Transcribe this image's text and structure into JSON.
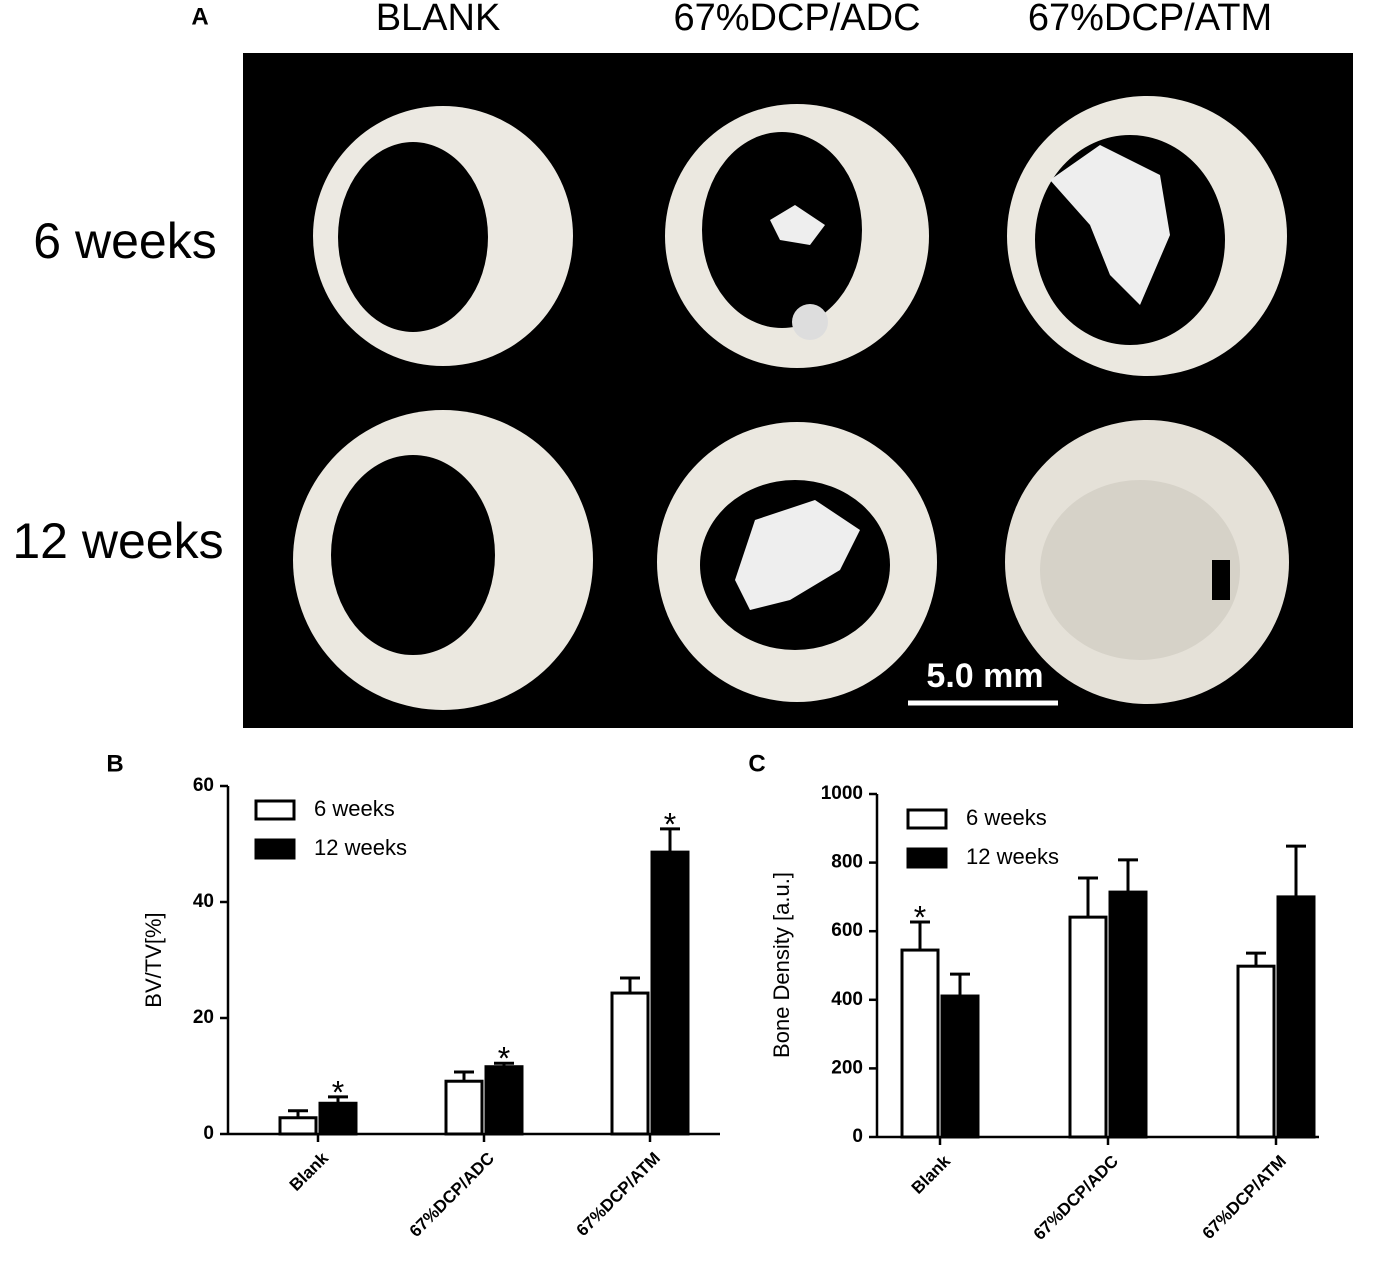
{
  "panel_a": {
    "label": "A",
    "columns": [
      "BLANK",
      "67%DCP/ADC",
      "67%DCP/ATM"
    ],
    "rows": [
      "6 weeks",
      "12 weeks"
    ],
    "scale_bar": "5.0 mm"
  },
  "chart_data": [
    {
      "type": "bar",
      "panel": "B",
      "y_label": "BV/TV[%]",
      "categories": [
        "Blank",
        "67%DCP/ADC",
        "67%DCP/ATM"
      ],
      "series": [
        {
          "name": "6 weeks",
          "color": "#ffffff",
          "values": [
            2.8,
            9.1,
            24.3
          ],
          "errors": [
            1.2,
            1.6,
            2.6
          ]
        },
        {
          "name": "12 weeks",
          "color": "#000000",
          "values": [
            5.3,
            11.6,
            48.6
          ],
          "errors": [
            1.1,
            0.6,
            4.0
          ]
        }
      ],
      "ylim": [
        0,
        60
      ],
      "yticks": [
        0,
        20,
        40,
        60
      ],
      "annotations": [
        {
          "text": "*",
          "series": 1,
          "category": 0
        },
        {
          "text": "*",
          "series": 1,
          "category": 1
        },
        {
          "text": "*",
          "series": 1,
          "category": 2
        }
      ]
    },
    {
      "type": "bar",
      "panel": "C",
      "y_label": "Bone Density [a.u.]",
      "categories": [
        "Blank",
        "67%DCP/ADC",
        "67%DCP/ATM"
      ],
      "series": [
        {
          "name": "6 weeks",
          "color": "#ffffff",
          "values": [
            545,
            641,
            498
          ],
          "errors": [
            82,
            114,
            38
          ]
        },
        {
          "name": "12 weeks",
          "color": "#000000",
          "values": [
            411,
            714,
            700
          ],
          "errors": [
            64,
            94,
            148
          ]
        }
      ],
      "ylim": [
        0,
        1000
      ],
      "yticks": [
        0,
        200,
        400,
        600,
        800,
        1000
      ],
      "annotations": [
        {
          "text": "*",
          "series": 0,
          "category": 0
        }
      ]
    }
  ]
}
